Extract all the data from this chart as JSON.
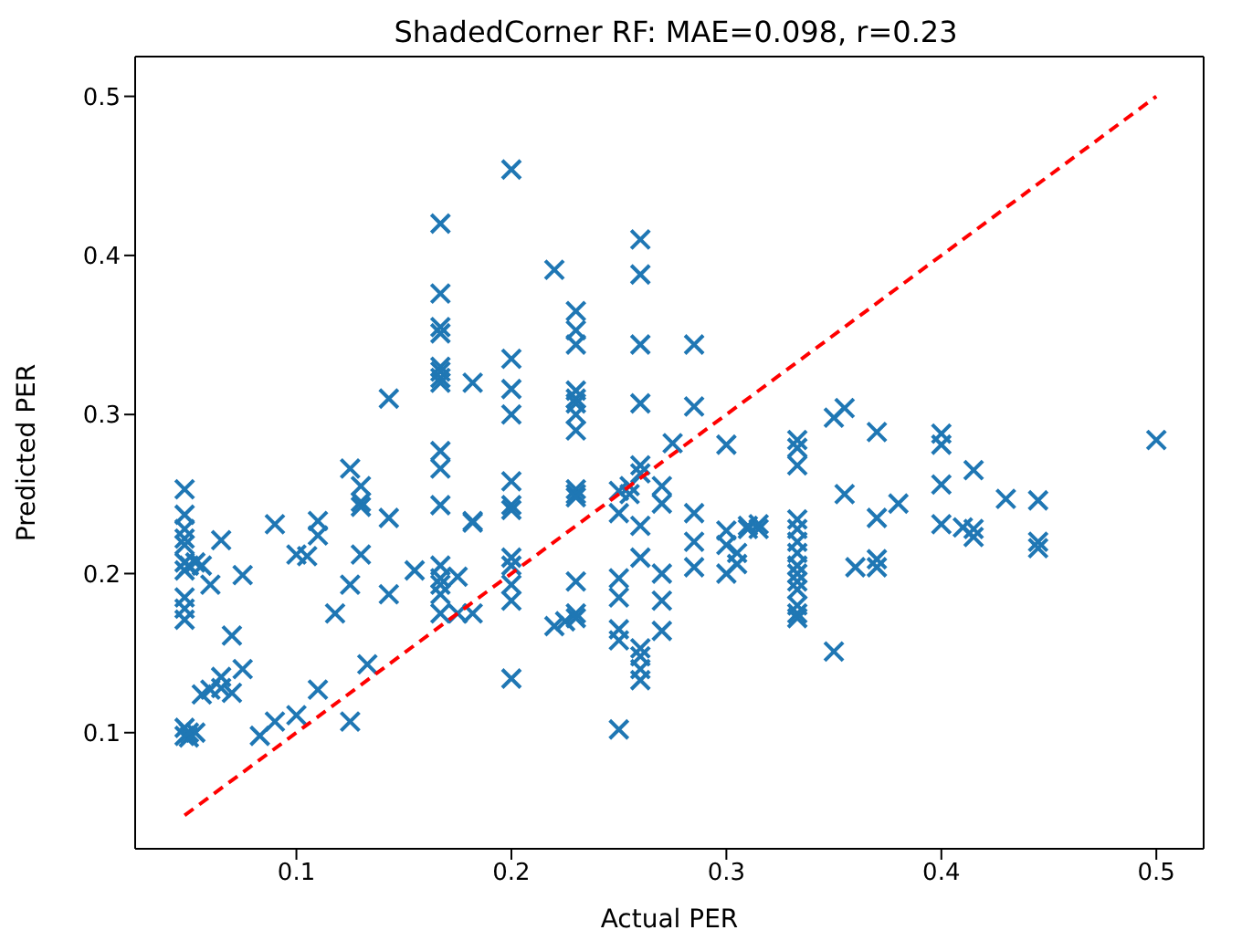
{
  "chart_data": {
    "type": "scatter",
    "title": "ShadedCorner RF: MAE=0.098, r=0.23",
    "xlabel": "Actual PER",
    "ylabel": "Predicted PER",
    "xlim": [
      0.025,
      0.522
    ],
    "ylim": [
      0.027,
      0.525
    ],
    "xticks": [
      0.1,
      0.2,
      0.3,
      0.4,
      0.5
    ],
    "yticks": [
      0.1,
      0.2,
      0.3,
      0.4,
      0.5
    ],
    "series": [
      {
        "color": "#1f77b4",
        "marker": "cross",
        "x": [
          0.048,
          0.048,
          0.048,
          0.048,
          0.048,
          0.048,
          0.048,
          0.048,
          0.048,
          0.048,
          0.048,
          0.048,
          0.05,
          0.05,
          0.05,
          0.053,
          0.053,
          0.056,
          0.056,
          0.06,
          0.06,
          0.065,
          0.065,
          0.065,
          0.07,
          0.07,
          0.075,
          0.075,
          0.083,
          0.09,
          0.09,
          0.1,
          0.1,
          0.105,
          0.11,
          0.11,
          0.11,
          0.118,
          0.125,
          0.125,
          0.125,
          0.13,
          0.13,
          0.13,
          0.13,
          0.133,
          0.143,
          0.143,
          0.143,
          0.155,
          0.167,
          0.167,
          0.167,
          0.167,
          0.167,
          0.167,
          0.167,
          0.167,
          0.167,
          0.167,
          0.167,
          0.167,
          0.167,
          0.167,
          0.167,
          0.167,
          0.175,
          0.175,
          0.182,
          0.182,
          0.182,
          0.182,
          0.2,
          0.2,
          0.2,
          0.2,
          0.2,
          0.2,
          0.2,
          0.2,
          0.2,
          0.2,
          0.2,
          0.2,
          0.22,
          0.22,
          0.225,
          0.23,
          0.23,
          0.23,
          0.23,
          0.23,
          0.23,
          0.23,
          0.23,
          0.23,
          0.23,
          0.23,
          0.23,
          0.23,
          0.23,
          0.25,
          0.25,
          0.25,
          0.25,
          0.25,
          0.25,
          0.25,
          0.255,
          0.255,
          0.26,
          0.26,
          0.26,
          0.26,
          0.26,
          0.26,
          0.26,
          0.26,
          0.26,
          0.26,
          0.26,
          0.26,
          0.27,
          0.27,
          0.27,
          0.27,
          0.27,
          0.275,
          0.285,
          0.285,
          0.285,
          0.285,
          0.285,
          0.3,
          0.3,
          0.3,
          0.3,
          0.305,
          0.305,
          0.31,
          0.31,
          0.315,
          0.315,
          0.333,
          0.333,
          0.333,
          0.333,
          0.333,
          0.333,
          0.333,
          0.333,
          0.333,
          0.333,
          0.333,
          0.333,
          0.333,
          0.333,
          0.35,
          0.35,
          0.355,
          0.355,
          0.36,
          0.37,
          0.37,
          0.37,
          0.37,
          0.38,
          0.4,
          0.4,
          0.4,
          0.4,
          0.41,
          0.415,
          0.415,
          0.415,
          0.43,
          0.445,
          0.445,
          0.445,
          0.5
        ],
        "values": [
          0.253,
          0.237,
          0.228,
          0.222,
          0.218,
          0.207,
          0.202,
          0.185,
          0.178,
          0.171,
          0.103,
          0.098,
          0.205,
          0.097,
          0.1,
          0.207,
          0.1,
          0.205,
          0.124,
          0.193,
          0.127,
          0.221,
          0.135,
          0.128,
          0.161,
          0.125,
          0.199,
          0.14,
          0.098,
          0.231,
          0.107,
          0.212,
          0.111,
          0.211,
          0.224,
          0.233,
          0.127,
          0.175,
          0.266,
          0.193,
          0.107,
          0.255,
          0.245,
          0.242,
          0.212,
          0.143,
          0.31,
          0.235,
          0.187,
          0.202,
          0.42,
          0.376,
          0.355,
          0.351,
          0.33,
          0.327,
          0.323,
          0.32,
          0.277,
          0.266,
          0.243,
          0.205,
          0.197,
          0.193,
          0.187,
          0.175,
          0.175,
          0.198,
          0.32,
          0.233,
          0.232,
          0.175,
          0.454,
          0.335,
          0.316,
          0.3,
          0.258,
          0.243,
          0.24,
          0.21,
          0.205,
          0.193,
          0.183,
          0.134,
          0.391,
          0.167,
          0.17,
          0.365,
          0.353,
          0.344,
          0.315,
          0.31,
          0.307,
          0.3,
          0.29,
          0.253,
          0.25,
          0.248,
          0.195,
          0.175,
          0.172,
          0.102,
          0.165,
          0.158,
          0.197,
          0.185,
          0.252,
          0.238,
          0.255,
          0.25,
          0.41,
          0.388,
          0.344,
          0.307,
          0.268,
          0.263,
          0.23,
          0.21,
          0.148,
          0.14,
          0.133,
          0.153,
          0.255,
          0.244,
          0.2,
          0.183,
          0.164,
          0.282,
          0.344,
          0.305,
          0.238,
          0.22,
          0.204,
          0.281,
          0.227,
          0.218,
          0.2,
          0.206,
          0.213,
          0.228,
          0.23,
          0.231,
          0.228,
          0.284,
          0.279,
          0.268,
          0.234,
          0.228,
          0.22,
          0.213,
          0.205,
          0.2,
          0.195,
          0.19,
          0.18,
          0.175,
          0.172,
          0.298,
          0.151,
          0.304,
          0.25,
          0.204,
          0.289,
          0.235,
          0.209,
          0.204,
          0.244,
          0.288,
          0.281,
          0.256,
          0.231,
          0.229,
          0.265,
          0.228,
          0.223,
          0.247,
          0.246,
          0.22,
          0.216,
          0.284
        ]
      },
      {
        "type": "line",
        "color": "#ff0000",
        "line_style": "dashed",
        "marker": "none",
        "x": [
          0.048,
          0.5
        ],
        "values": [
          0.048,
          0.5
        ]
      }
    ]
  }
}
